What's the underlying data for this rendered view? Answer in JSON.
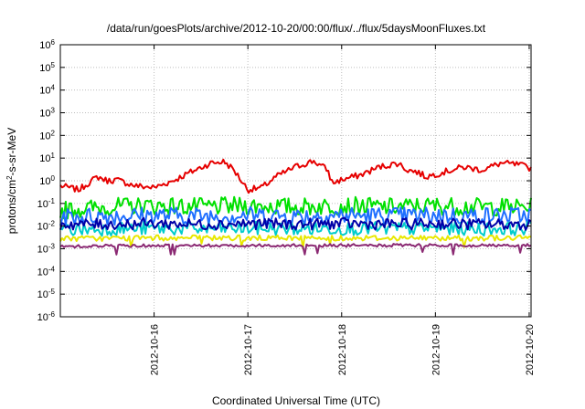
{
  "chart_data": {
    "type": "line",
    "title": "/data/run/goesPlots/archive/2012-10-20/00:00/flux/../flux/5daysMoonFluxes.txt",
    "xlabel": "Coordinated Universal Time (UTC)",
    "ylabel": {
      "pre": "protons/cm",
      "sup": "2",
      "post": "-s-sr-MeV"
    },
    "yscale": "log",
    "ylim_exponents": [
      -6,
      6
    ],
    "yticks": [
      {
        "base": "10",
        "exp": "-6"
      },
      {
        "base": "10",
        "exp": "-5"
      },
      {
        "base": "10",
        "exp": "-4"
      },
      {
        "base": "10",
        "exp": "-3"
      },
      {
        "base": "10",
        "exp": "-2"
      },
      {
        "base": "10",
        "exp": "-1"
      },
      {
        "base": "10",
        "exp": "0"
      },
      {
        "base": "10",
        "exp": "1"
      },
      {
        "base": "10",
        "exp": "2"
      },
      {
        "base": "10",
        "exp": "3"
      },
      {
        "base": "10",
        "exp": "4"
      },
      {
        "base": "10",
        "exp": "5"
      },
      {
        "base": "10",
        "exp": "6"
      }
    ],
    "x_range_days": [
      15.0,
      20.02
    ],
    "xticks": [
      {
        "day": 16,
        "label": "2012-10-16"
      },
      {
        "day": 17,
        "label": "2012-10-17"
      },
      {
        "day": 18,
        "label": "2012-10-18"
      },
      {
        "day": 19,
        "label": "2012-10-19"
      },
      {
        "day": 20,
        "label": "2012-10-20"
      }
    ],
    "grid": true,
    "series": [
      {
        "color": "#e60000",
        "base": [
          [
            15.0,
            0.6
          ],
          [
            15.2,
            0.4
          ],
          [
            15.3,
            0.8
          ],
          [
            15.4,
            1.5
          ],
          [
            15.5,
            1.0
          ],
          [
            15.6,
            1.1
          ],
          [
            15.8,
            0.6
          ],
          [
            16.0,
            0.5
          ],
          [
            16.2,
            1.0
          ],
          [
            16.4,
            2.5
          ],
          [
            16.6,
            6.0
          ],
          [
            16.75,
            7.0
          ],
          [
            16.85,
            3.0
          ],
          [
            17.0,
            0.4
          ],
          [
            17.15,
            0.5
          ],
          [
            17.3,
            1.5
          ],
          [
            17.5,
            4.0
          ],
          [
            17.7,
            7.5
          ],
          [
            17.85,
            3.0
          ],
          [
            17.9,
            0.8
          ],
          [
            18.0,
            1.1
          ],
          [
            18.2,
            1.8
          ],
          [
            18.4,
            4.0
          ],
          [
            18.6,
            6.0
          ],
          [
            18.7,
            3.0
          ],
          [
            18.8,
            2.5
          ],
          [
            18.9,
            1.5
          ],
          [
            19.1,
            2.5
          ],
          [
            19.3,
            4.0
          ],
          [
            19.5,
            3.0
          ],
          [
            19.7,
            6.0
          ],
          [
            19.9,
            5.0
          ],
          [
            20.02,
            3.5
          ]
        ],
        "noise": 0.14
      },
      {
        "color": "#00e000",
        "base": [
          [
            15.0,
            0.05
          ],
          [
            15.5,
            0.07
          ],
          [
            16.0,
            0.08
          ],
          [
            16.5,
            0.07
          ],
          [
            17.0,
            0.08
          ],
          [
            17.5,
            0.07
          ],
          [
            18.0,
            0.08
          ],
          [
            18.5,
            0.07
          ],
          [
            19.0,
            0.08
          ],
          [
            19.5,
            0.07
          ],
          [
            20.02,
            0.07
          ]
        ],
        "noise": 0.4
      },
      {
        "color": "#1f6fff",
        "base": [
          [
            15.0,
            0.025
          ],
          [
            15.5,
            0.028
          ],
          [
            16.0,
            0.03
          ],
          [
            16.5,
            0.028
          ],
          [
            17.0,
            0.03
          ],
          [
            17.5,
            0.028
          ],
          [
            18.0,
            0.03
          ],
          [
            18.5,
            0.028
          ],
          [
            19.0,
            0.03
          ],
          [
            19.5,
            0.028
          ],
          [
            20.02,
            0.03
          ]
        ],
        "noise": 0.4
      },
      {
        "color": "#00cccc",
        "base": [
          [
            15.0,
            0.007
          ],
          [
            15.5,
            0.0075
          ],
          [
            16.0,
            0.008
          ],
          [
            16.5,
            0.0075
          ],
          [
            17.0,
            0.008
          ],
          [
            17.5,
            0.0075
          ],
          [
            18.0,
            0.008
          ],
          [
            18.5,
            0.0075
          ],
          [
            19.0,
            0.008
          ],
          [
            19.5,
            0.0075
          ],
          [
            20.02,
            0.008
          ]
        ],
        "noise": 0.3
      },
      {
        "color": "#0000a8",
        "base": [
          [
            15.0,
            0.012
          ],
          [
            15.5,
            0.012
          ],
          [
            16.0,
            0.013
          ],
          [
            16.5,
            0.012
          ],
          [
            17.0,
            0.013
          ],
          [
            17.5,
            0.012
          ],
          [
            18.0,
            0.013
          ],
          [
            18.5,
            0.012
          ],
          [
            19.0,
            0.013
          ],
          [
            19.5,
            0.012
          ],
          [
            20.02,
            0.012
          ]
        ],
        "noise": 0.25
      },
      {
        "color": "#e8e800",
        "base": [
          [
            15.0,
            0.0028
          ],
          [
            16.0,
            0.003
          ],
          [
            17.0,
            0.003
          ],
          [
            18.0,
            0.003
          ],
          [
            19.0,
            0.003
          ],
          [
            20.02,
            0.003
          ]
        ],
        "noise": 0.12
      },
      {
        "color": "#8b2a73",
        "base": [
          [
            15.0,
            0.0013
          ],
          [
            16.0,
            0.0014
          ],
          [
            17.0,
            0.0014
          ],
          [
            18.0,
            0.0014
          ],
          [
            19.0,
            0.0014
          ],
          [
            20.02,
            0.0014
          ]
        ],
        "noise": 0.07
      }
    ]
  }
}
